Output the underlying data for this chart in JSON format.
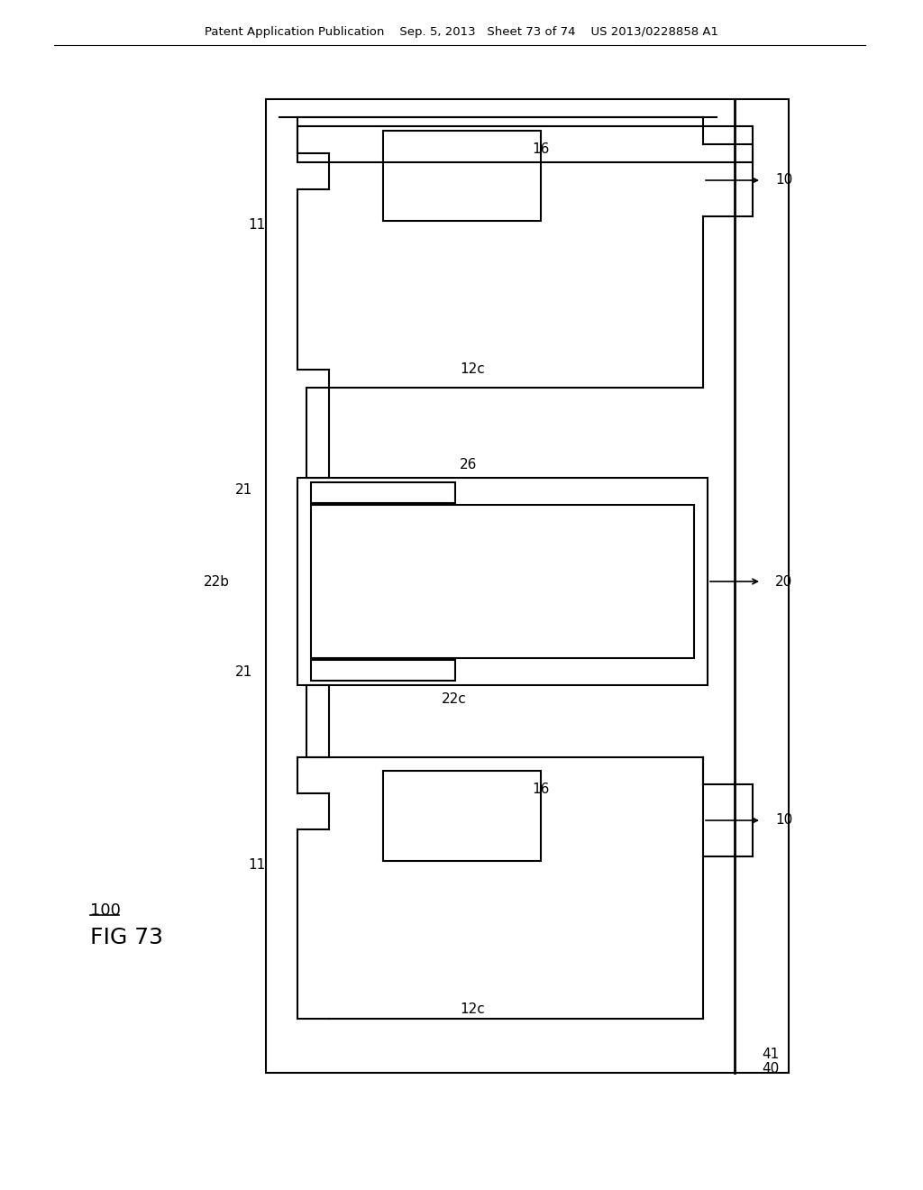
{
  "bg_color": "#ffffff",
  "line_color": "#000000",
  "title_text": "Patent Application Publication    Sep. 5, 2013   Sheet 73 of 74    US 2013/0228858 A1",
  "fig_label": "FIG 73",
  "component_label": "100",
  "labels": {
    "16_top": "16",
    "11_top": "11",
    "10_top": "10",
    "12c_top": "12c",
    "26": "26",
    "22b": "22b",
    "21_top": "21",
    "21_bot": "21",
    "20": "20",
    "22c": "22c",
    "16_bot": "16",
    "11_bot": "11",
    "10_bot": "10",
    "12c_bot": "12c",
    "40": "40",
    "41": "41"
  }
}
